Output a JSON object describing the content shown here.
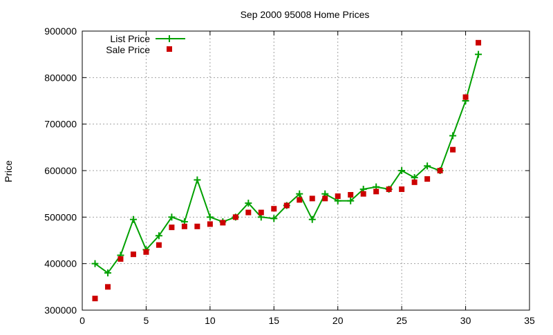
{
  "colors": {
    "list_price": "#00a000",
    "sale_price": "#cc0000",
    "grid": "#a0a0a0",
    "axis": "#000000"
  },
  "chart_data": {
    "type": "scatter",
    "title": "Sep 2000 95008 Home Prices",
    "xlabel": "",
    "ylabel": "Price",
    "xlim": [
      0,
      35
    ],
    "ylim": [
      300000,
      900000
    ],
    "xticks": [
      0,
      5,
      10,
      15,
      20,
      25,
      30,
      35
    ],
    "yticks": [
      300000,
      400000,
      500000,
      600000,
      700000,
      800000,
      900000
    ],
    "grid": true,
    "legend_position": "top-left",
    "series": [
      {
        "name": "List Price",
        "style": "line-with-plus-markers",
        "x": [
          1,
          2,
          3,
          4,
          5,
          6,
          7,
          8,
          9,
          10,
          11,
          12,
          13,
          14,
          15,
          16,
          17,
          18,
          19,
          20,
          21,
          22,
          23,
          24,
          25,
          26,
          27,
          28,
          29,
          30,
          31
        ],
        "y": [
          400000,
          380000,
          418000,
          495000,
          430000,
          460000,
          500000,
          490000,
          580000,
          500000,
          490000,
          500000,
          530000,
          500000,
          497000,
          525000,
          550000,
          495000,
          550000,
          535000,
          535000,
          560000,
          565000,
          560000,
          600000,
          585000,
          610000,
          600000,
          675000,
          750000,
          850000
        ]
      },
      {
        "name": "Sale Price",
        "style": "square-markers",
        "x": [
          1,
          2,
          3,
          4,
          5,
          6,
          7,
          8,
          9,
          10,
          11,
          12,
          13,
          14,
          15,
          16,
          17,
          18,
          19,
          20,
          21,
          22,
          23,
          24,
          25,
          26,
          27,
          28,
          29,
          30,
          31
        ],
        "y": [
          325000,
          350000,
          410000,
          420000,
          425000,
          440000,
          478000,
          480000,
          480000,
          485000,
          488000,
          500000,
          510000,
          510000,
          518000,
          525000,
          537000,
          540000,
          540000,
          545000,
          548000,
          550000,
          555000,
          560000,
          560000,
          575000,
          582000,
          600000,
          645000,
          758000,
          875000
        ]
      }
    ]
  }
}
